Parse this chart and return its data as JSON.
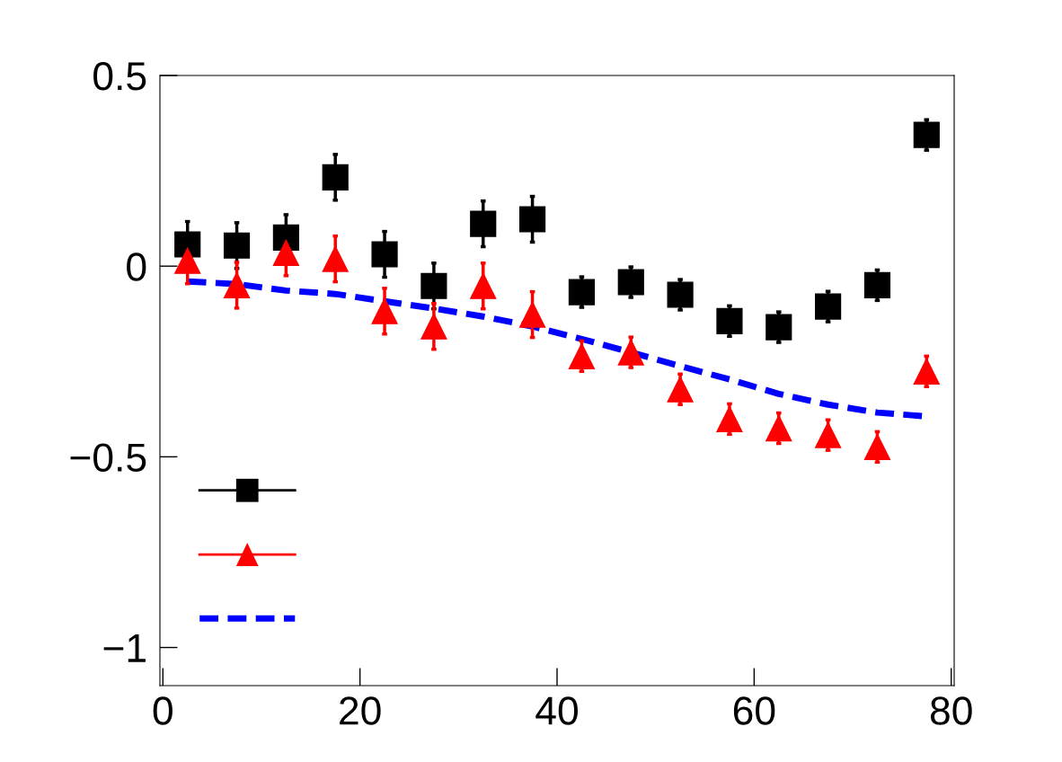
{
  "chart_data": {
    "type": "scatter",
    "x": [
      2.5,
      7.5,
      12.5,
      17.5,
      22.5,
      27.5,
      32.5,
      37.5,
      42.5,
      47.5,
      52.5,
      57.5,
      62.5,
      67.5,
      72.5,
      77.5
    ],
    "series": [
      {
        "color": "#000000",
        "marker": "square",
        "values": [
          0.057,
          0.054,
          0.075,
          0.233,
          0.031,
          -0.052,
          0.111,
          0.123,
          -0.068,
          -0.042,
          -0.075,
          -0.144,
          -0.16,
          -0.106,
          -0.05,
          0.344
        ],
        "errors": [
          0.06,
          0.06,
          0.06,
          0.06,
          0.06,
          0.06,
          0.06,
          0.06,
          0.04,
          0.04,
          0.04,
          0.04,
          0.04,
          0.04,
          0.04,
          0.04
        ]
      },
      {
        "color": "#ff0000",
        "marker": "triangle",
        "values": [
          0.014,
          -0.05,
          0.035,
          0.019,
          -0.118,
          -0.158,
          -0.052,
          -0.127,
          -0.236,
          -0.226,
          -0.323,
          -0.401,
          -0.425,
          -0.443,
          -0.474,
          -0.276
        ],
        "errors": [
          0.06,
          0.06,
          0.06,
          0.06,
          0.06,
          0.06,
          0.06,
          0.06,
          0.04,
          0.04,
          0.04,
          0.04,
          0.04,
          0.04,
          0.04,
          0.04
        ]
      },
      {
        "type": "line",
        "color": "#0000ff",
        "line_style": "dashed",
        "values": [
          -0.04,
          -0.047,
          -0.064,
          -0.073,
          -0.092,
          -0.111,
          -0.132,
          -0.158,
          -0.191,
          -0.226,
          -0.262,
          -0.297,
          -0.335,
          -0.363,
          -0.384,
          -0.394
        ]
      }
    ],
    "xlim": [
      -0.3,
      80.3
    ],
    "xticks": [
      0,
      20,
      40,
      60,
      80
    ],
    "ylim": [
      -1.1,
      0.5
    ],
    "yticks": [
      {
        "value": -1,
        "label": "−1"
      },
      {
        "value": -0.5,
        "label": "−0.5"
      },
      0,
      0.5
    ],
    "grid": false
  }
}
